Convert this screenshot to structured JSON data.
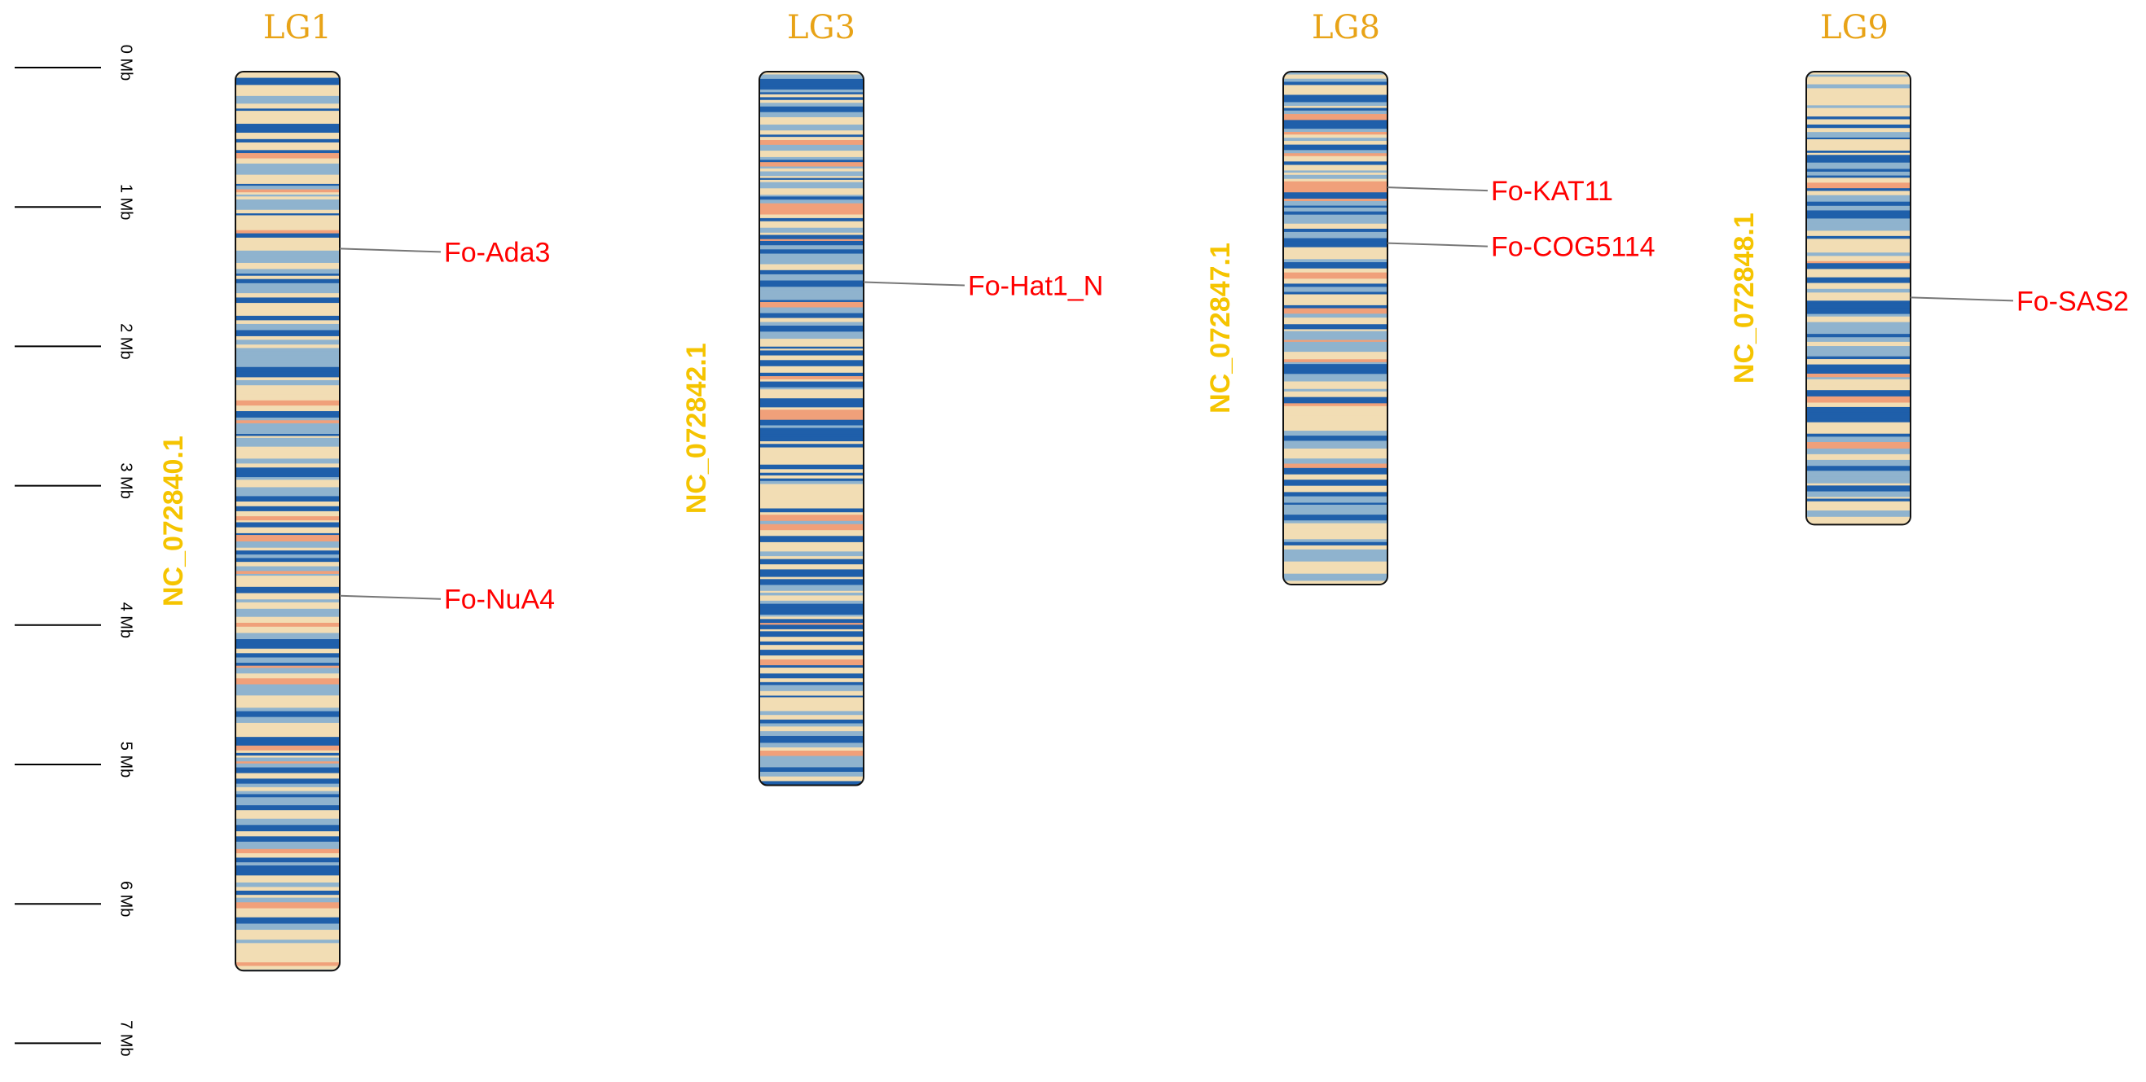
{
  "colors": {
    "title": "#E8A317",
    "accession": "#F5C400",
    "gene": "#FF0000",
    "outline": "#111111",
    "leader": "#777777",
    "density_low": "#F2DDB4",
    "density_mid": "#8FB3CE",
    "density_high": "#1F5FAA",
    "density_hot": "#F0A07A"
  },
  "scale": {
    "unit": "Mb",
    "ticks": [
      {
        "value": 0,
        "label": "0 Mb"
      },
      {
        "value": 1,
        "label": "1 Mb"
      },
      {
        "value": 2,
        "label": "2 Mb"
      },
      {
        "value": 3,
        "label": "3 Mb"
      },
      {
        "value": 4,
        "label": "4 Mb"
      },
      {
        "value": 5,
        "label": "5 Mb"
      },
      {
        "value": 6,
        "label": "6 Mb"
      },
      {
        "value": 7,
        "label": "7 Mb"
      }
    ]
  },
  "chromosomes": [
    {
      "id": "lg1",
      "name": "LG1",
      "accession": "NC_072840.1",
      "length_mb": 6.45,
      "seed": 11,
      "genes": [
        {
          "name": "Fo-Ada3",
          "pos_mb": 1.27
        },
        {
          "name": "Fo-NuA4",
          "pos_mb": 3.76
        }
      ]
    },
    {
      "id": "lg3",
      "name": "LG3",
      "accession": "NC_072842.1",
      "length_mb": 5.12,
      "seed": 23,
      "genes": [
        {
          "name": "Fo-Hat1_N",
          "pos_mb": 1.51
        }
      ]
    },
    {
      "id": "lg8",
      "name": "LG8",
      "accession": "NC_072847.1",
      "length_mb": 3.68,
      "seed": 37,
      "genes": [
        {
          "name": "Fo-KAT11",
          "pos_mb": 0.83
        },
        {
          "name": "Fo-COG5114",
          "pos_mb": 1.23
        }
      ]
    },
    {
      "id": "lg9",
      "name": "LG9",
      "accession": "NC_072848.1",
      "length_mb": 3.25,
      "seed": 53,
      "genes": [
        {
          "name": "Fo-SAS2",
          "pos_mb": 1.62
        }
      ]
    }
  ]
}
